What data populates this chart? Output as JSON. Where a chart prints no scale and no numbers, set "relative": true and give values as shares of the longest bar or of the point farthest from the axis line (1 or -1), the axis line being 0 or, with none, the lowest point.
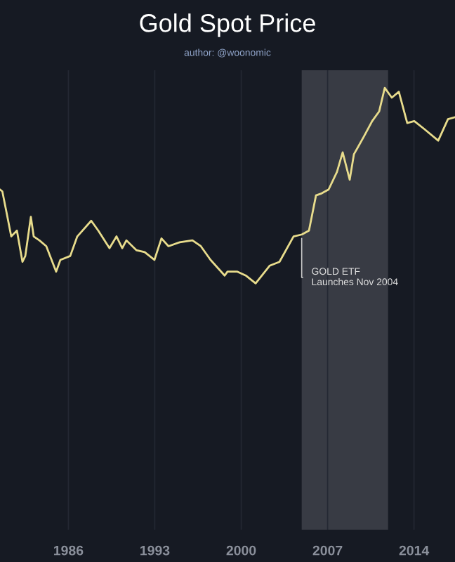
{
  "chart_data": {
    "type": "line",
    "title": "Gold Spot Price",
    "subtitle": "author: @woonomic",
    "relative": true,
    "xlim": [
      1980.46,
      2017.32
    ],
    "xticks": [
      1986,
      1993,
      2000,
      2007,
      2014
    ],
    "grid": "x",
    "bands": [
      {
        "axis": "x",
        "from": 2004.9,
        "to": 2011.9,
        "color": "#383b44"
      }
    ],
    "annotations": [
      {
        "text": "GOLD ETF\nLaunches Nov 2004",
        "x": 2004.9,
        "y": 0.25
      }
    ],
    "series": [
      {
        "color": "#e8dc8c",
        "x": [
          1980.46,
          1980.65,
          1981.03,
          1981.37,
          1981.83,
          1982.28,
          1982.51,
          1982.96,
          1983.19,
          1983.65,
          1984.21,
          1985.01,
          1985.35,
          1986.15,
          1986.72,
          1987.85,
          1988.42,
          1989.33,
          1989.9,
          1990.36,
          1990.7,
          1991.5,
          1992.18,
          1992.97,
          1993.54,
          1994.11,
          1995.02,
          1996.05,
          1996.73,
          1997.52,
          1998.66,
          1998.89,
          1999.69,
          2000.37,
          2001.17,
          2002.3,
          2003.1,
          2004.24,
          2004.92,
          2005.49,
          2006.06,
          2006.51,
          2007.08,
          2007.76,
          2008.22,
          2008.79,
          2009.13,
          2009.93,
          2010.61,
          2011.18,
          2011.63,
          2012.2,
          2012.77,
          2013.45,
          2014.02,
          2014.82,
          2015.96,
          2016.75,
          2017.32
        ],
        "values": [
          0.48,
          0.47,
          0.35,
          0.24,
          0.27,
          0.11,
          0.14,
          0.34,
          0.24,
          0.22,
          0.19,
          0.06,
          0.12,
          0.14,
          0.24,
          0.32,
          0.27,
          0.18,
          0.24,
          0.18,
          0.22,
          0.17,
          0.16,
          0.12,
          0.23,
          0.19,
          0.21,
          0.22,
          0.19,
          0.12,
          0.04,
          0.06,
          0.06,
          0.04,
          0,
          0.09,
          0.11,
          0.24,
          0.25,
          0.27,
          0.45,
          0.46,
          0.48,
          0.57,
          0.67,
          0.53,
          0.66,
          0.75,
          0.83,
          0.88,
          1,
          0.95,
          0.98,
          0.82,
          0.83,
          0.79,
          0.73,
          0.84,
          0.85
        ]
      }
    ]
  }
}
